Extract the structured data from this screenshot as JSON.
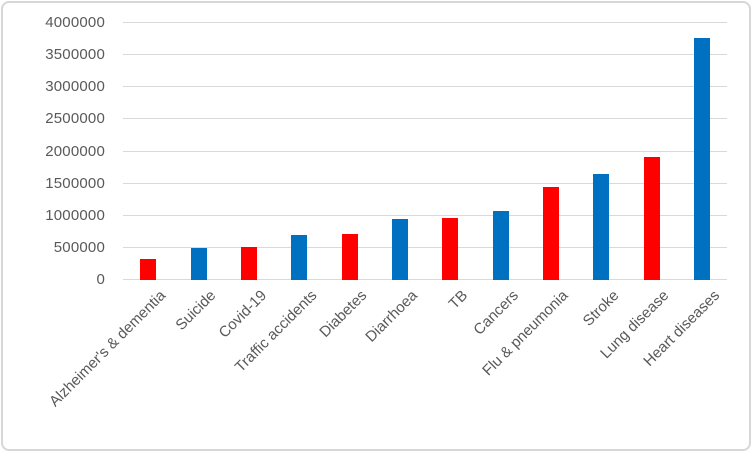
{
  "chart_data": {
    "type": "bar",
    "title": "",
    "xlabel": "",
    "ylabel": "",
    "ylim": [
      0,
      4000000
    ],
    "y_ticks": [
      0,
      500000,
      1000000,
      1500000,
      2000000,
      2500000,
      3000000,
      3500000,
      4000000
    ],
    "grid": true,
    "legend": false,
    "categories": [
      "Alzheimer's & dementia",
      "Suicide",
      "Covid-19",
      "Traffic accidents",
      "Diabetes",
      "Diarrhoea",
      "TB",
      "Cancers",
      "Flu & pneumonia",
      "Stroke",
      "Lung disease",
      "Heart diseases"
    ],
    "points": [
      {
        "label": "Alzheimer's & dementia",
        "value": 320000,
        "color": "#FF0000"
      },
      {
        "label": "Suicide",
        "value": 500000,
        "color": "#0070C0"
      },
      {
        "label": "Covid-19",
        "value": 515000,
        "color": "#FF0000"
      },
      {
        "label": "Traffic accidents",
        "value": 705000,
        "color": "#0070C0"
      },
      {
        "label": "Diabetes",
        "value": 710000,
        "color": "#FF0000"
      },
      {
        "label": "Diarrhoea",
        "value": 945000,
        "color": "#0070C0"
      },
      {
        "label": "TB",
        "value": 970000,
        "color": "#FF0000"
      },
      {
        "label": "Cancers",
        "value": 1080000,
        "color": "#0070C0"
      },
      {
        "label": "Flu & pneumonia",
        "value": 1440000,
        "color": "#FF0000"
      },
      {
        "label": "Stroke",
        "value": 1650000,
        "color": "#0070C0"
      },
      {
        "label": "Lung disease",
        "value": 1910000,
        "color": "#FF0000"
      },
      {
        "label": "Heart diseases",
        "value": 3770000,
        "color": "#0070C0"
      }
    ],
    "colors": {
      "series_red": "#FF0000",
      "series_blue": "#0070C0",
      "text": "#595959",
      "gridline": "#D9D9D9",
      "frame_border": "#D7D7D7"
    }
  }
}
